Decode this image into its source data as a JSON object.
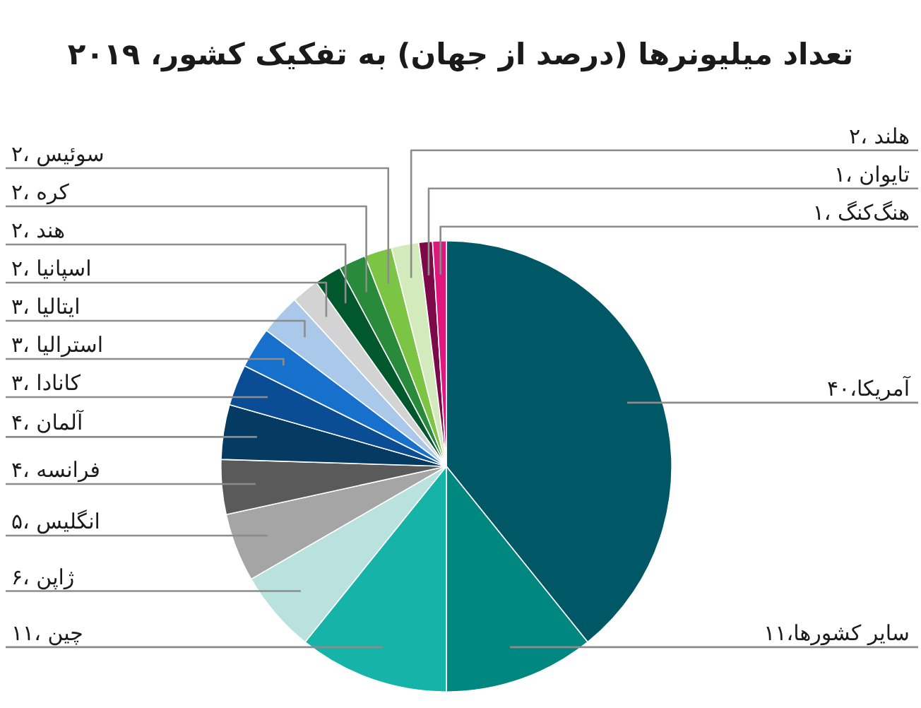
{
  "chart_data": {
    "type": "pie",
    "title": "تعداد میلیونرها (درصد از جهان) به تفکیک کشور، ۲۰۱۹",
    "categories": [
      "۴۰،آمریکا",
      "۱۱،سایر کشورها",
      "۱۱، چین",
      "۶، ژاپن",
      "۵، انگلیس",
      "۴، فرانسه",
      "۴، آلمان",
      "۳، کانادا",
      "۳، استرالیا",
      "۳، ایتالیا",
      "۲، اسپانیا",
      "۲، هند",
      "۲، کره",
      "۲، سوئیس",
      "۲، هلند",
      "۱، تایوان",
      "۱، هنگ‌کنگ"
    ],
    "values": [
      40,
      11,
      11,
      6,
      5,
      4,
      4,
      3,
      3,
      3,
      2,
      2,
      2,
      2,
      2,
      1,
      1
    ],
    "colors": [
      "#005866",
      "#00877f",
      "#16b3a8",
      "#b9e1de",
      "#a5a5a5",
      "#5a5a5a",
      "#053a62",
      "#0b4d94",
      "#1670cc",
      "#aac8ea",
      "#d3d3d3",
      "#00582c",
      "#2a8a3c",
      "#7cc444",
      "#d3eabc",
      "#7c0a48",
      "#e0177c"
    ]
  }
}
